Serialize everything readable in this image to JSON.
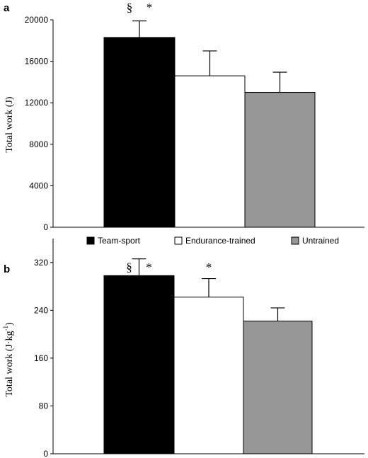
{
  "chart_data": [
    {
      "type": "bar",
      "panel": "a",
      "ylabel": "Total work (J)",
      "ylim": [
        0,
        20000
      ],
      "yticks": [
        0,
        4000,
        8000,
        12000,
        16000,
        20000
      ],
      "ytick_labels": [
        "0",
        "4000",
        "8000",
        "12000",
        "16000",
        "20000"
      ],
      "categories": [
        "Team-sport",
        "Endurance-trained",
        "Untrained"
      ],
      "values": [
        18300,
        14600,
        13000
      ],
      "errors": [
        1600,
        2400,
        1950
      ],
      "annotations": [
        {
          "category": "Team-sport",
          "marks": [
            "§",
            "*"
          ]
        }
      ]
    },
    {
      "type": "bar",
      "panel": "b",
      "ylabel_main": "Total work (J·kg",
      "ylabel_sup": "-1",
      "ylabel_tail": ")",
      "ylim": [
        0,
        360
      ],
      "yticks": [
        0,
        80,
        160,
        240,
        320
      ],
      "ytick_labels": [
        "0",
        "80",
        "160",
        "240",
        "320"
      ],
      "categories": [
        "Team-sport",
        "Endurance-trained",
        "Untrained"
      ],
      "values": [
        298,
        262,
        222
      ],
      "errors": [
        28,
        31,
        22
      ],
      "annotations": [
        {
          "category": "Team-sport",
          "marks": [
            "§",
            "*"
          ]
        },
        {
          "category": "Endurance-trained",
          "marks": [
            "*"
          ]
        }
      ]
    }
  ],
  "legend": {
    "placement": "between panels",
    "items": [
      {
        "label": "Team-sport",
        "color": "#000000"
      },
      {
        "label": "Endurance-trained",
        "color": "#ffffff"
      },
      {
        "label": "Untrained",
        "color": "#969696"
      }
    ]
  },
  "colors": {
    "Team-sport": "#000000",
    "Endurance-trained": "#ffffff",
    "Untrained": "#969696"
  }
}
